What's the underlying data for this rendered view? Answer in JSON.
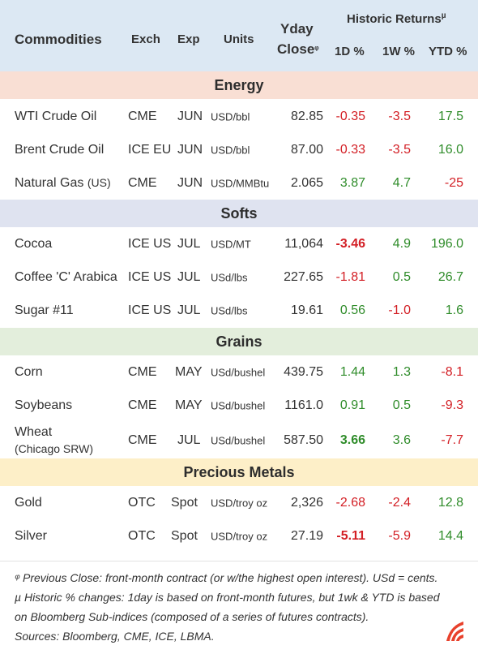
{
  "header": {
    "commodities": "Commodities",
    "exch": "Exch",
    "exp": "Exp",
    "units": "Units",
    "yday_close_line1": "Yday",
    "yday_close_line2": "Close",
    "yday_close_mark": "ᵠ",
    "historic_returns": "Historic Returns",
    "historic_mark": "µ",
    "d1": "1D %",
    "w1": "1W %",
    "ytd": "YTD %"
  },
  "sections": [
    {
      "title": "Energy",
      "rows": [
        {
          "name": "WTI Crude Oil",
          "exch": "CME",
          "exp": "JUN",
          "units": "USD/bbl",
          "close": "82.85",
          "d1": "-0.35",
          "w1": "-3.5",
          "ytd": "17.5"
        },
        {
          "name": "Brent Crude Oil",
          "exch": "ICE EU",
          "exp": "JUN",
          "units": "USD/bbl",
          "close": "87.00",
          "d1": "-0.33",
          "w1": "-3.5",
          "ytd": "16.0"
        },
        {
          "name": "Natural Gas",
          "name_suffix": "(US)",
          "exch": "CME",
          "exp": "JUN",
          "units": "USD/MMBtu",
          "close": "2.065",
          "d1": "3.87",
          "w1": "4.7",
          "ytd": "-25"
        }
      ]
    },
    {
      "title": "Softs",
      "rows": [
        {
          "name": "Cocoa",
          "exch": "ICE US",
          "exp": "JUL",
          "units": "USD/MT",
          "close": "11,064",
          "d1": "-3.46",
          "w1": "4.9",
          "ytd": "196.0"
        },
        {
          "name": "Coffee 'C' Arabica",
          "exch": "ICE US",
          "exp": "JUL",
          "units": "USd/lbs",
          "close": "227.65",
          "d1": "-1.81",
          "w1": "0.5",
          "ytd": "26.7"
        },
        {
          "name": "Sugar #11",
          "exch": "ICE US",
          "exp": "JUL",
          "units": "USd/lbs",
          "close": "19.61",
          "d1": "0.56",
          "w1": "-1.0",
          "ytd": "1.6"
        }
      ]
    },
    {
      "title": "Grains",
      "rows": [
        {
          "name": "Corn",
          "exch": "CME",
          "exp": "MAY",
          "units": "USd/bushel",
          "close": "439.75",
          "d1": "1.44",
          "w1": "1.3",
          "ytd": "-8.1"
        },
        {
          "name": "Soybeans",
          "exch": "CME",
          "exp": "MAY",
          "units": "USd/bushel",
          "close": "1161.0",
          "d1": "0.91",
          "w1": "0.5",
          "ytd": "-9.3"
        },
        {
          "name": "Wheat",
          "name_sub": "(Chicago SRW)",
          "exch": "CME",
          "exp": "JUL",
          "units": "USd/bushel",
          "close": "587.50",
          "d1": "3.66",
          "w1": "3.6",
          "ytd": "-7.7"
        }
      ]
    },
    {
      "title": "Precious Metals",
      "rows": [
        {
          "name": "Gold",
          "exch": "OTC",
          "exp": "Spot",
          "units": "USD/troy oz",
          "close": "2,326",
          "d1": "-2.68",
          "w1": "-2.4",
          "ytd": "12.8"
        },
        {
          "name": "Silver",
          "exch": "OTC",
          "exp": "Spot",
          "units": "USD/troy oz",
          "close": "27.19",
          "d1": "-5.11",
          "w1": "-5.9",
          "ytd": "14.4"
        }
      ]
    }
  ],
  "footnotes": {
    "line1": "ᵠ Previous Close: front-month contract (or w/the highest open interest). USd = cents.",
    "line2": "µ Historic % changes: 1day is based on front-month futures, but 1wk & YTD is based",
    "line3": "on Bloomberg Sub-indices (composed of a series of futures contracts).",
    "line4": "Sources: Bloomberg, CME, ICE, LBMA."
  },
  "colors": {
    "header_bg": "#dce8f3",
    "energy_bg": "#f9dfd4",
    "softs_bg": "#dfe3f0",
    "grains_bg": "#e3eedc",
    "metals_bg": "#fdefc8",
    "negative": "#d31f25",
    "positive": "#2f8c2a",
    "logo": "#e8412c"
  },
  "icons": {
    "logo": "brand-logo-icon"
  }
}
